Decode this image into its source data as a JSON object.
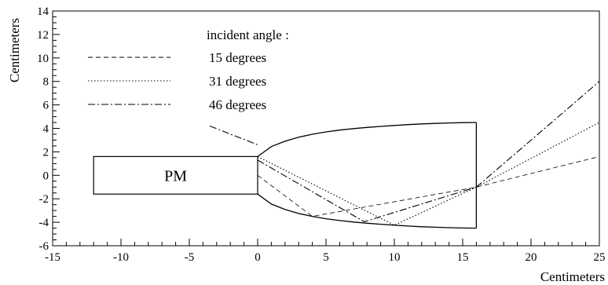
{
  "chart_data": {
    "type": "line",
    "title": "",
    "xlabel": "Centimeters",
    "ylabel": "Centimeters",
    "xlim": [
      -15,
      25
    ],
    "ylim": [
      -6,
      14
    ],
    "xticks": [
      -15,
      -10,
      -5,
      0,
      5,
      10,
      15,
      20,
      25
    ],
    "yticks": [
      -6,
      -4,
      -2,
      0,
      2,
      4,
      6,
      8,
      10,
      12,
      14
    ],
    "grid": false,
    "legend": {
      "title": "incident angle :",
      "placement": "top-left",
      "entries": [
        {
          "label": "15 degrees",
          "dash": "6,4"
        },
        {
          "label": "31 degrees",
          "dash": "1.5,2.5"
        },
        {
          "label": "46 degrees",
          "dash": "9,3,2,3"
        }
      ]
    },
    "pm_box": {
      "label": "PM",
      "x": [
        -12,
        0
      ],
      "y": [
        -1.6,
        1.6
      ]
    },
    "reflector": {
      "upper": [
        [
          0,
          1.6
        ],
        [
          1,
          2.45
        ],
        [
          2,
          2.9
        ],
        [
          3,
          3.25
        ],
        [
          4,
          3.5
        ],
        [
          5,
          3.7
        ],
        [
          6,
          3.85
        ],
        [
          7,
          3.98
        ],
        [
          8,
          4.08
        ],
        [
          9,
          4.17
        ],
        [
          10,
          4.25
        ],
        [
          11,
          4.32
        ],
        [
          12,
          4.38
        ],
        [
          13,
          4.42
        ],
        [
          14,
          4.46
        ],
        [
          15,
          4.49
        ],
        [
          16,
          4.5
        ]
      ],
      "lower": [
        [
          0,
          -1.6
        ],
        [
          1,
          -2.45
        ],
        [
          2,
          -2.9
        ],
        [
          3,
          -3.25
        ],
        [
          4,
          -3.5
        ],
        [
          5,
          -3.7
        ],
        [
          6,
          -3.85
        ],
        [
          7,
          -3.98
        ],
        [
          8,
          -4.08
        ],
        [
          9,
          -4.17
        ],
        [
          10,
          -4.25
        ],
        [
          11,
          -4.32
        ],
        [
          12,
          -4.38
        ],
        [
          13,
          -4.42
        ],
        [
          14,
          -4.46
        ],
        [
          15,
          -4.49
        ],
        [
          16,
          -4.5
        ]
      ],
      "exit_x": 16
    },
    "series": [
      {
        "dash": "6,4",
        "stroke_width": 0.8,
        "points": [
          [
            0,
            0
          ],
          [
            4,
            -3.5
          ],
          [
            16,
            -1
          ],
          [
            25,
            1.6
          ]
        ]
      },
      {
        "dash": "1.5,2.5",
        "stroke_width": 1.1,
        "points": [
          [
            0,
            1.6
          ],
          [
            10,
            -4.25
          ],
          [
            16,
            -1
          ],
          [
            25,
            4.5
          ]
        ]
      },
      {
        "dash": "9,3,2,3",
        "stroke_width": 1.1,
        "points": [
          [
            -3.5,
            4.2
          ],
          [
            0,
            2.6
          ]
        ]
      },
      {
        "dash": "9,3,2,3",
        "stroke_width": 1.1,
        "points": [
          [
            0,
            1.3
          ],
          [
            7.8,
            -3.95
          ],
          [
            16,
            -1
          ],
          [
            25,
            8
          ]
        ]
      }
    ]
  }
}
